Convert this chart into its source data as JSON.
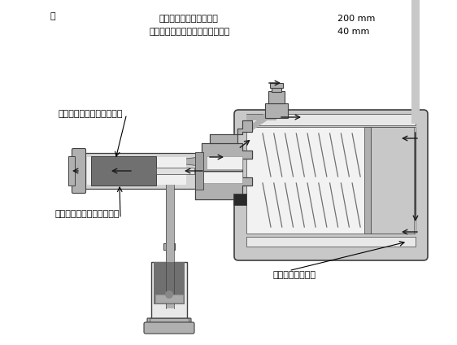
{
  "bg_color": "#ffffff",
  "fig_label": "図",
  "spec_line1_label": "パワー・シリンダの内径",
  "spec_line1_value": "200 mm",
  "spec_line2_label": "ハイドロリック・シリンダの内径",
  "spec_line2_value": "40 mm",
  "label_hydraulic_cylinder": "ハイドロリック・シリンダ",
  "label_hydraulic_piston": "ハイドロリック・ピストン",
  "label_power_cylinder": "パワー・シリンダ",
  "gray_light": "#c8c8c8",
  "gray_mid": "#b0b0b0",
  "gray_dark": "#707070",
  "outline_color": "#404040",
  "arrow_color": "#1a1a1a"
}
